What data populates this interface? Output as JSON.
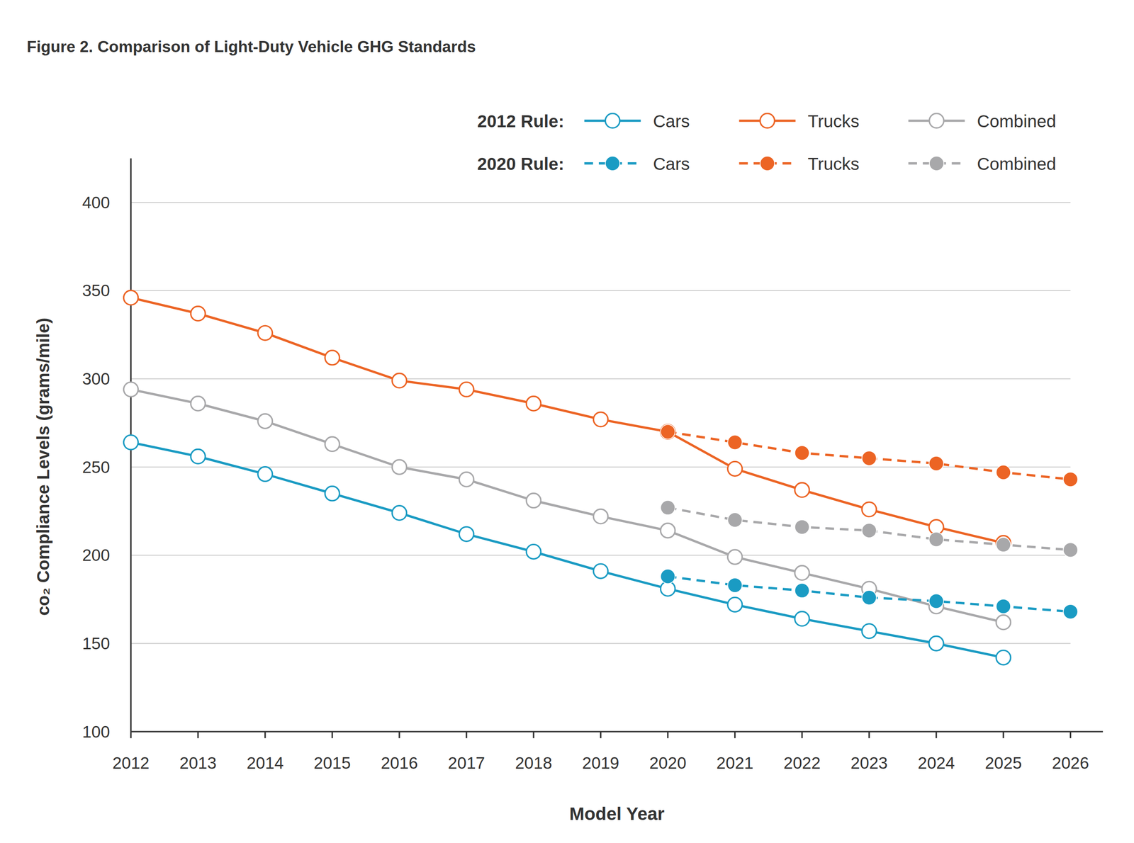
{
  "chart_data": {
    "type": "line",
    "title": "Figure 2. Comparison of Light-Duty Vehicle GHG Standards",
    "x_label": "Model Year",
    "y_label": "co₂ Compliance Levels (grams/mile)",
    "legend_titles": [
      "2012 Rule:",
      "2020 Rule:"
    ],
    "categories": [
      "2012",
      "2013",
      "2014",
      "2015",
      "2016",
      "2017",
      "2018",
      "2019",
      "2020",
      "2021",
      "2022",
      "2023",
      "2024",
      "2025",
      "2026"
    ],
    "ylim": [
      100,
      425
    ],
    "yticks": [
      100,
      150,
      200,
      250,
      300,
      350,
      400
    ],
    "grid": true,
    "legend": "top right",
    "series": [
      {
        "name": "Cars",
        "color": "#1a9bc3",
        "line_style": "solid",
        "marker": "open",
        "values": [
          264,
          256,
          246,
          235,
          224,
          212,
          202,
          191,
          181,
          172,
          164,
          157,
          150,
          142,
          null
        ]
      },
      {
        "name": "Trucks",
        "color": "#ec6424",
        "line_style": "solid",
        "marker": "open",
        "values": [
          346,
          337,
          326,
          312,
          299,
          294,
          286,
          277,
          270,
          249,
          237,
          226,
          216,
          207,
          null
        ]
      },
      {
        "name": "Combined",
        "color": "#a8a8aa",
        "line_style": "solid",
        "marker": "open",
        "values": [
          294,
          286,
          276,
          263,
          250,
          243,
          231,
          222,
          214,
          199,
          190,
          181,
          171,
          162,
          null
        ]
      },
      {
        "name": "Cars",
        "color": "#1a9bc3",
        "line_style": "dashed",
        "marker": "filled",
        "values": [
          null,
          null,
          null,
          null,
          null,
          null,
          null,
          null,
          188,
          183,
          180,
          176,
          174,
          171,
          168
        ]
      },
      {
        "name": "Trucks",
        "color": "#ec6424",
        "line_style": "dashed",
        "marker": "filled",
        "values": [
          null,
          null,
          null,
          null,
          null,
          null,
          null,
          null,
          270,
          264,
          258,
          255,
          252,
          247,
          243
        ]
      },
      {
        "name": "Combined",
        "color": "#a8a8aa",
        "line_style": "dashed",
        "marker": "filled",
        "values": [
          null,
          null,
          null,
          null,
          null,
          null,
          null,
          null,
          227,
          220,
          216,
          214,
          209,
          206,
          203
        ]
      }
    ]
  }
}
